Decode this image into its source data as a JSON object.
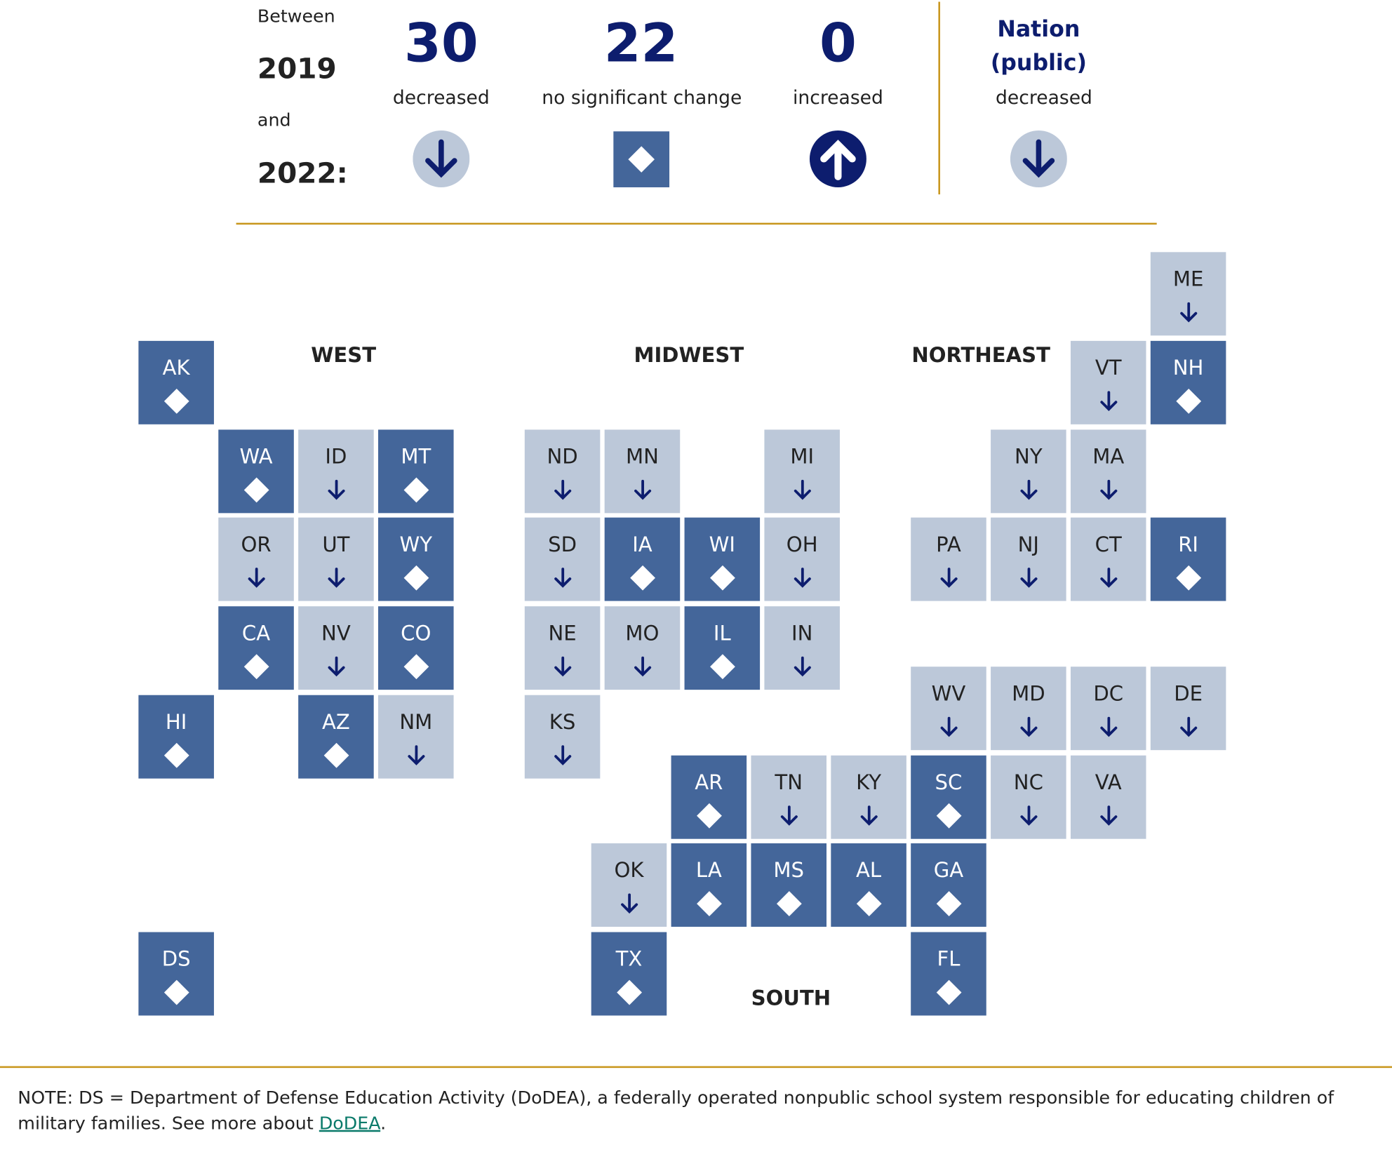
{
  "chart_data": {
    "type": "tile-map",
    "header": {
      "between": "Between",
      "year1": "2019",
      "and": "and",
      "year2": "2022:"
    },
    "summary": [
      {
        "count": "30",
        "label": "decreased",
        "icon": "arrow-down-circle-icon"
      },
      {
        "count": "22",
        "label": "no significant change",
        "icon": "diamond-square-icon"
      },
      {
        "count": "0",
        "label": "increased",
        "icon": "arrow-up-circle-icon"
      }
    ],
    "nation": {
      "title_line1": "Nation",
      "title_line2": "(public)",
      "label": "decreased",
      "icon": "arrow-down-circle-icon"
    },
    "regions": [
      "WEST",
      "MIDWEST",
      "NORTHEAST",
      "SOUTH"
    ],
    "legend": {
      "decreased": "#bcc8d9",
      "no significant change": "#44669a"
    },
    "states": [
      {
        "abbr": "ME",
        "status": "decreased"
      },
      {
        "abbr": "AK",
        "status": "no significant change"
      },
      {
        "abbr": "VT",
        "status": "decreased"
      },
      {
        "abbr": "NH",
        "status": "no significant change"
      },
      {
        "abbr": "WA",
        "status": "no significant change"
      },
      {
        "abbr": "ID",
        "status": "decreased"
      },
      {
        "abbr": "MT",
        "status": "no significant change"
      },
      {
        "abbr": "ND",
        "status": "decreased"
      },
      {
        "abbr": "MN",
        "status": "decreased"
      },
      {
        "abbr": "MI",
        "status": "decreased"
      },
      {
        "abbr": "NY",
        "status": "decreased"
      },
      {
        "abbr": "MA",
        "status": "decreased"
      },
      {
        "abbr": "OR",
        "status": "decreased"
      },
      {
        "abbr": "UT",
        "status": "decreased"
      },
      {
        "abbr": "WY",
        "status": "no significant change"
      },
      {
        "abbr": "SD",
        "status": "decreased"
      },
      {
        "abbr": "IA",
        "status": "no significant change"
      },
      {
        "abbr": "WI",
        "status": "no significant change"
      },
      {
        "abbr": "OH",
        "status": "decreased"
      },
      {
        "abbr": "PA",
        "status": "decreased"
      },
      {
        "abbr": "NJ",
        "status": "decreased"
      },
      {
        "abbr": "CT",
        "status": "decreased"
      },
      {
        "abbr": "RI",
        "status": "no significant change"
      },
      {
        "abbr": "CA",
        "status": "no significant change"
      },
      {
        "abbr": "NV",
        "status": "decreased"
      },
      {
        "abbr": "CO",
        "status": "no significant change"
      },
      {
        "abbr": "NE",
        "status": "decreased"
      },
      {
        "abbr": "MO",
        "status": "decreased"
      },
      {
        "abbr": "IL",
        "status": "no significant change"
      },
      {
        "abbr": "IN",
        "status": "decreased"
      },
      {
        "abbr": "HI",
        "status": "no significant change"
      },
      {
        "abbr": "AZ",
        "status": "no significant change"
      },
      {
        "abbr": "NM",
        "status": "decreased"
      },
      {
        "abbr": "KS",
        "status": "decreased"
      },
      {
        "abbr": "WV",
        "status": "decreased"
      },
      {
        "abbr": "MD",
        "status": "decreased"
      },
      {
        "abbr": "DC",
        "status": "decreased"
      },
      {
        "abbr": "DE",
        "status": "decreased"
      },
      {
        "abbr": "AR",
        "status": "no significant change"
      },
      {
        "abbr": "TN",
        "status": "decreased"
      },
      {
        "abbr": "KY",
        "status": "decreased"
      },
      {
        "abbr": "SC",
        "status": "no significant change"
      },
      {
        "abbr": "NC",
        "status": "decreased"
      },
      {
        "abbr": "VA",
        "status": "decreased"
      },
      {
        "abbr": "OK",
        "status": "decreased"
      },
      {
        "abbr": "LA",
        "status": "no significant change"
      },
      {
        "abbr": "MS",
        "status": "no significant change"
      },
      {
        "abbr": "AL",
        "status": "no significant change"
      },
      {
        "abbr": "GA",
        "status": "no significant change"
      },
      {
        "abbr": "DS",
        "status": "no significant change"
      },
      {
        "abbr": "TX",
        "status": "no significant change"
      },
      {
        "abbr": "FL",
        "status": "no significant change"
      }
    ]
  },
  "colors": {
    "navy": "#0d1d6e",
    "gold": "#c8961c",
    "link": "#0a7a6a"
  },
  "note": {
    "text": "NOTE: DS = Department of Defense Education Activity (DoDEA), a federally operated nonpublic school system responsible for educating children of military families. See more about ",
    "link": "DoDEA",
    "end": "."
  }
}
